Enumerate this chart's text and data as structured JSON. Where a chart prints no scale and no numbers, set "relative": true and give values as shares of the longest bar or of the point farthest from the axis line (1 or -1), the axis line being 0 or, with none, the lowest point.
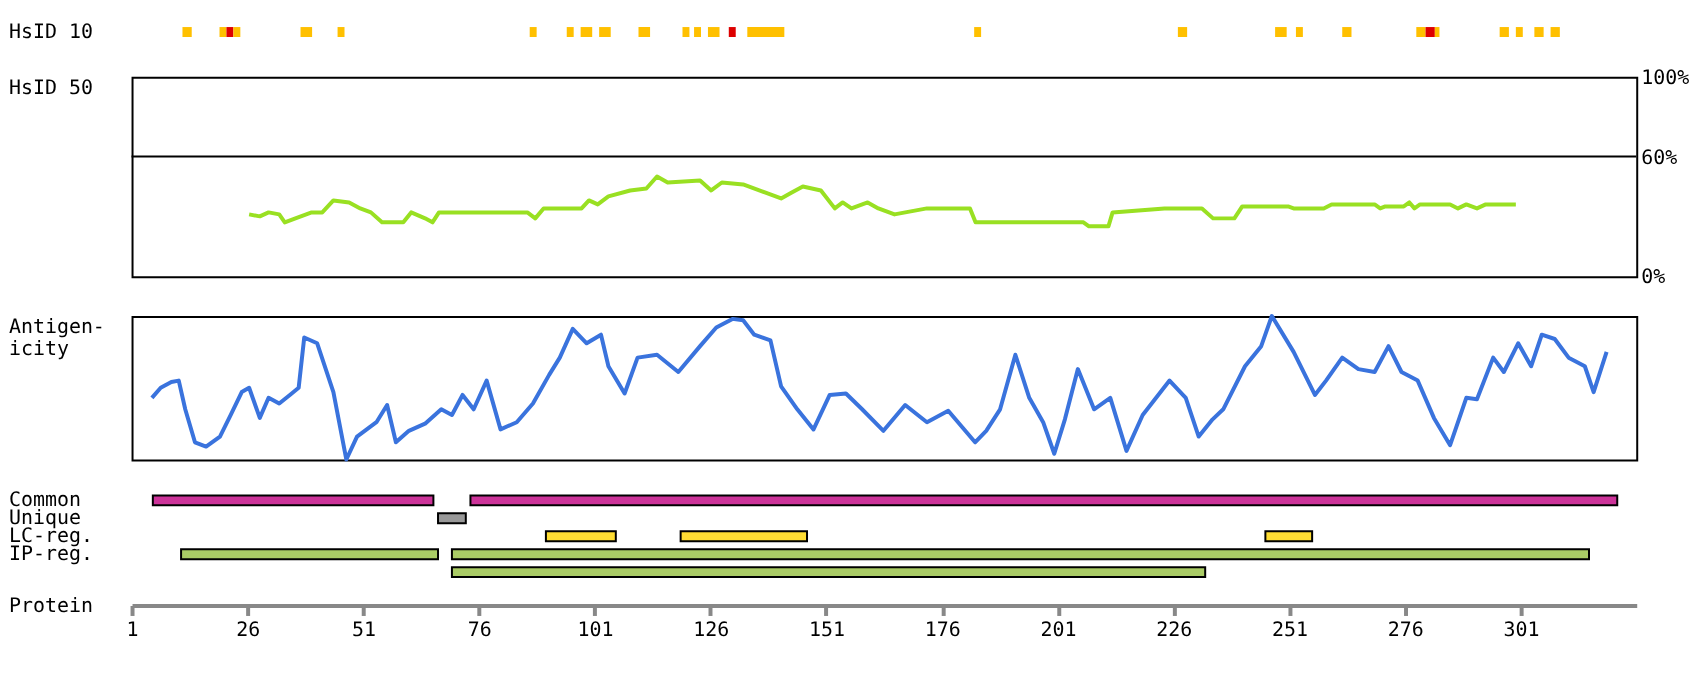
{
  "chart_data": [
    {
      "type": "bar",
      "orientation": "horizontal",
      "xlim": [
        1,
        326
      ],
      "tick_labels": "y",
      "grid": false,
      "categories": [
        "HsID 10"
      ],
      "series": [
        {
          "color": "#ffc000",
          "base": [
            12
          ],
          "values": [
            2
          ]
        },
        {
          "color": "#ffc000",
          "base": [
            20
          ],
          "values": [
            1.5
          ]
        },
        {
          "color": "#dd0000",
          "base": [
            21.5
          ],
          "values": [
            1.5
          ]
        },
        {
          "color": "#ffc000",
          "base": [
            23
          ],
          "values": [
            1.5
          ]
        },
        {
          "color": "#ffc000",
          "base": [
            37.5
          ],
          "values": [
            2.5
          ]
        },
        {
          "color": "#ffc000",
          "base": [
            45.5
          ],
          "values": [
            1.5
          ]
        },
        {
          "color": "#ffc000",
          "base": [
            87
          ],
          "values": [
            1.5
          ]
        },
        {
          "color": "#ffc000",
          "base": [
            95
          ],
          "values": [
            1.5
          ]
        },
        {
          "color": "#ffc000",
          "base": [
            98
          ],
          "values": [
            2.5
          ]
        },
        {
          "color": "#ffc000",
          "base": [
            102
          ],
          "values": [
            2.5
          ]
        },
        {
          "color": "#ffc000",
          "base": [
            110.5
          ],
          "values": [
            2.5
          ]
        },
        {
          "color": "#ffc000",
          "base": [
            120
          ],
          "values": [
            1.5
          ]
        },
        {
          "color": "#ffc000",
          "base": [
            122.5
          ],
          "values": [
            1.5
          ]
        },
        {
          "color": "#ffc000",
          "base": [
            125.5
          ],
          "values": [
            2.5
          ]
        },
        {
          "color": "#dd0000",
          "base": [
            130
          ],
          "values": [
            1.5
          ]
        },
        {
          "color": "#ffc000",
          "base": [
            134
          ],
          "values": [
            8
          ]
        },
        {
          "color": "#ffc000",
          "base": [
            183
          ],
          "values": [
            1.5
          ]
        },
        {
          "color": "#ffc000",
          "base": [
            227
          ],
          "values": [
            2
          ]
        },
        {
          "color": "#ffc000",
          "base": [
            248
          ],
          "values": [
            2.5
          ]
        },
        {
          "color": "#ffc000",
          "base": [
            252.5
          ],
          "values": [
            1.5
          ]
        },
        {
          "color": "#ffc000",
          "base": [
            262.5
          ],
          "values": [
            2
          ]
        },
        {
          "color": "#ffc000",
          "base": [
            278.5
          ],
          "values": [
            2
          ]
        },
        {
          "color": "#dd0000",
          "base": [
            280.5
          ],
          "values": [
            2
          ]
        },
        {
          "color": "#ffc000",
          "base": [
            282.5
          ],
          "values": [
            1
          ]
        },
        {
          "color": "#ffc000",
          "base": [
            296.5
          ],
          "values": [
            2
          ]
        },
        {
          "color": "#ffc000",
          "base": [
            300
          ],
          "values": [
            1.5
          ]
        },
        {
          "color": "#ffc000",
          "base": [
            304
          ],
          "values": [
            2
          ]
        },
        {
          "color": "#ffc000",
          "base": [
            307.5
          ],
          "values": [
            2
          ]
        }
      ]
    },
    {
      "type": "line",
      "ylabel": "HsID 50",
      "xlim": [
        1,
        326
      ],
      "ylim": [
        0,
        100
      ],
      "yticks": [
        {
          "value": 0,
          "label": "0%"
        },
        {
          "value": 60,
          "label": "60%"
        },
        {
          "value": 100,
          "label": "100%"
        }
      ],
      "tick_labels": "y",
      "grid": false,
      "line_style": "solid",
      "marker": "none",
      "ref_lines": [
        {
          "axis": "y",
          "value": 60,
          "color": "#000000"
        }
      ],
      "x": [
        26.4,
        28.7,
        30.6,
        32.9,
        34.1,
        36.4,
        39.9,
        42.2,
        44.6,
        48.0,
        50.4,
        52.7,
        55.1,
        59.7,
        61.4,
        64.4,
        66.0,
        67.4,
        86.5,
        88.2,
        90.0,
        98.2,
        99.8,
        101.7,
        104.0,
        108.7,
        112.2,
        114.5,
        116.8,
        123.8,
        126.2,
        128.5,
        133.1,
        137.8,
        141.3,
        143.6,
        146.0,
        149.9,
        152.9,
        154.6,
        156.5,
        160.0,
        162.3,
        165.8,
        172.8,
        182.1,
        183.3,
        206.6,
        207.8,
        212.0,
        212.9,
        224.1,
        232.2,
        234.6,
        239.2,
        240.9,
        250.8,
        252.0,
        258.5,
        260.2,
        269.5,
        270.7,
        271.8,
        275.8,
        277.0,
        278.1,
        279.3,
        285.8,
        287.5,
        289.3,
        291.6,
        293.5,
        300.0
      ],
      "series": [
        {
          "color": "#99e022",
          "values": [
            31,
            30,
            32,
            31,
            27,
            29,
            32,
            32,
            38,
            37,
            34,
            32,
            27,
            27,
            32,
            29,
            27,
            32,
            32,
            29,
            34,
            34,
            38,
            36,
            40,
            43,
            44,
            50,
            47,
            48,
            43,
            47,
            46,
            42,
            39,
            42,
            45,
            43,
            34,
            37,
            34,
            37,
            34,
            31,
            34,
            34,
            27,
            27,
            25,
            25,
            32,
            34,
            34,
            29,
            29,
            35,
            35,
            34,
            34,
            36,
            36,
            34,
            35,
            35,
            37,
            34,
            36,
            36,
            34,
            36,
            34,
            36,
            36
          ]
        }
      ]
    },
    {
      "type": "line",
      "ylabel": "Antigen-\nicity",
      "relative": true,
      "xlim": [
        1,
        326
      ],
      "tick_labels": false,
      "grid": false,
      "line_style": "solid",
      "marker": "none",
      "x": [
        5.4,
        7.3,
        9.6,
        11.2,
        12.6,
        14.7,
        17.1,
        20.1,
        22.4,
        24.8,
        26.4,
        28.7,
        30.6,
        32.9,
        35.2,
        37.1,
        38.3,
        41.1,
        44.6,
        47.4,
        49.7,
        53.9,
        56.2,
        58.1,
        60.9,
        64.4,
        67.9,
        70.2,
        72.5,
        74.9,
        77.7,
        80.7,
        84.2,
        87.7,
        91.2,
        93.5,
        96.3,
        99.3,
        102.4,
        104.0,
        107.5,
        110.3,
        114.5,
        119.1,
        123.8,
        127.3,
        130.8,
        133.1,
        135.5,
        139.0,
        141.3,
        144.8,
        148.3,
        151.8,
        155.3,
        158.8,
        163.4,
        168.1,
        172.8,
        177.4,
        183.2,
        185.6,
        188.6,
        191.9,
        194.9,
        197.9,
        200.3,
        202.6,
        205.4,
        208.9,
        212.4,
        215.9,
        219.4,
        225.2,
        228.7,
        231.5,
        234.5,
        236.8,
        241.5,
        245.0,
        247.3,
        252.0,
        256.6,
        259.0,
        262.5,
        266.0,
        269.5,
        272.5,
        275.3,
        278.8,
        282.3,
        285.8,
        289.3,
        291.6,
        295.1,
        297.4,
        300.5,
        303.3,
        305.6,
        308.4,
        311.4,
        314.9,
        316.8,
        319.6
      ],
      "series": [
        {
          "color": "#3a73dd",
          "values": [
            0.43,
            0.5,
            0.54,
            0.55,
            0.35,
            0.12,
            0.09,
            0.16,
            0.31,
            0.47,
            0.5,
            0.29,
            0.43,
            0.39,
            0.45,
            0.5,
            0.85,
            0.81,
            0.47,
            0,
            0.16,
            0.26,
            0.38,
            0.12,
            0.2,
            0.25,
            0.35,
            0.31,
            0.45,
            0.35,
            0.55,
            0.21,
            0.26,
            0.39,
            0.59,
            0.71,
            0.91,
            0.81,
            0.87,
            0.65,
            0.46,
            0.71,
            0.73,
            0.61,
            0.79,
            0.92,
            0.98,
            0.97,
            0.87,
            0.83,
            0.51,
            0.35,
            0.21,
            0.45,
            0.46,
            0.35,
            0.2,
            0.38,
            0.26,
            0.34,
            0.12,
            0.2,
            0.35,
            0.73,
            0.43,
            0.26,
            0.04,
            0.28,
            0.63,
            0.35,
            0.43,
            0.06,
            0.31,
            0.55,
            0.43,
            0.16,
            0.28,
            0.35,
            0.65,
            0.79,
            1,
            0.75,
            0.45,
            0.55,
            0.71,
            0.63,
            0.61,
            0.79,
            0.61,
            0.55,
            0.29,
            0.1,
            0.43,
            0.42,
            0.71,
            0.61,
            0.81,
            0.65,
            0.87,
            0.84,
            0.71,
            0.65,
            0.47,
            0.75
          ]
        }
      ]
    },
    {
      "type": "bar",
      "orientation": "horizontal",
      "xlabel": "Protein",
      "xlim": [
        1,
        326
      ],
      "xticks": [
        1,
        26,
        51,
        76,
        101,
        126,
        151,
        176,
        201,
        226,
        251,
        276,
        301
      ],
      "tick_labels": "x",
      "grid": false,
      "categories": [
        "Common",
        "Unique",
        "LC-reg.",
        "IP-reg.",
        null
      ],
      "series": [
        {
          "color": "#cc3399",
          "base": [
            5.6,
            null,
            null,
            null,
            null
          ],
          "values": [
            60.6,
            null,
            null,
            null,
            null
          ]
        },
        {
          "color": "#cc3399",
          "base": [
            74.2,
            null,
            null,
            null,
            null
          ],
          "values": [
            247.7,
            null,
            null,
            null,
            null
          ]
        },
        {
          "color": "#999999",
          "base": [
            null,
            67.2,
            null,
            null,
            null
          ],
          "values": [
            null,
            6.0,
            null,
            null,
            null
          ]
        },
        {
          "color": "#ffdd33",
          "base": [
            null,
            null,
            90.5,
            null,
            null
          ],
          "values": [
            null,
            null,
            15.1,
            null,
            null
          ]
        },
        {
          "color": "#ffdd33",
          "base": [
            null,
            null,
            119.6,
            null,
            null
          ],
          "values": [
            null,
            null,
            27.3,
            null,
            null
          ]
        },
        {
          "color": "#ffdd33",
          "base": [
            null,
            null,
            245.9,
            null,
            null
          ],
          "values": [
            null,
            null,
            10.1,
            null,
            null
          ]
        },
        {
          "color": "#aacc66",
          "base": [
            null,
            null,
            null,
            11.7,
            70.2
          ],
          "values": [
            null,
            null,
            null,
            55.5,
            162.7
          ]
        },
        {
          "color": "#aacc66",
          "base": [
            null,
            null,
            null,
            70.2,
            null
          ],
          "values": [
            null,
            null,
            null,
            245.6,
            null
          ]
        }
      ]
    }
  ]
}
